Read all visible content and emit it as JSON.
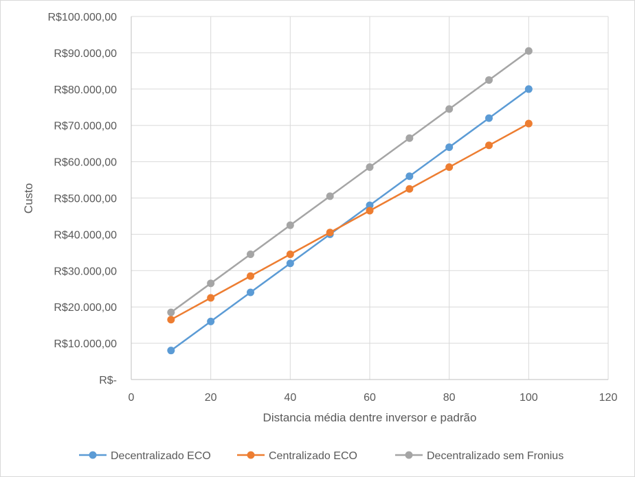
{
  "chart_data": {
    "type": "scatter",
    "xlabel": "Distancia média dentre inversor e padrão",
    "ylabel": "Custo",
    "xlim": [
      0,
      120
    ],
    "ylim": [
      0,
      100000
    ],
    "x_ticks": [
      0,
      20,
      40,
      60,
      80,
      100,
      120
    ],
    "x_tick_labels": [
      "0",
      "20",
      "40",
      "60",
      "80",
      "100",
      "120"
    ],
    "y_ticks": [
      0,
      10000,
      20000,
      30000,
      40000,
      50000,
      60000,
      70000,
      80000,
      90000,
      100000
    ],
    "y_tick_labels": [
      "R$-",
      "R$10.000,00",
      "R$20.000,00",
      "R$30.000,00",
      "R$40.000,00",
      "R$50.000,00",
      "R$60.000,00",
      "R$70.000,00",
      "R$80.000,00",
      "R$90.000,00",
      "R$100.000,00"
    ],
    "grid": "on",
    "legend_position": "bottom",
    "x": [
      10,
      20,
      30,
      40,
      50,
      60,
      70,
      80,
      90,
      100
    ],
    "series": [
      {
        "name": "Decentralizado ECO",
        "color": "#5B9BD5",
        "values": [
          8000,
          16000,
          24000,
          32000,
          40000,
          48000,
          56000,
          64000,
          72000,
          80000
        ]
      },
      {
        "name": "Centralizado ECO",
        "color": "#ED7D31",
        "values": [
          16500,
          22500,
          28500,
          34500,
          40500,
          46500,
          52500,
          58500,
          64500,
          70500
        ]
      },
      {
        "name": "Decentralizado sem Fronius",
        "color": "#A5A5A5",
        "values": [
          18500,
          26500,
          34500,
          42500,
          50500,
          58500,
          66500,
          74500,
          82500,
          90500
        ]
      }
    ]
  }
}
